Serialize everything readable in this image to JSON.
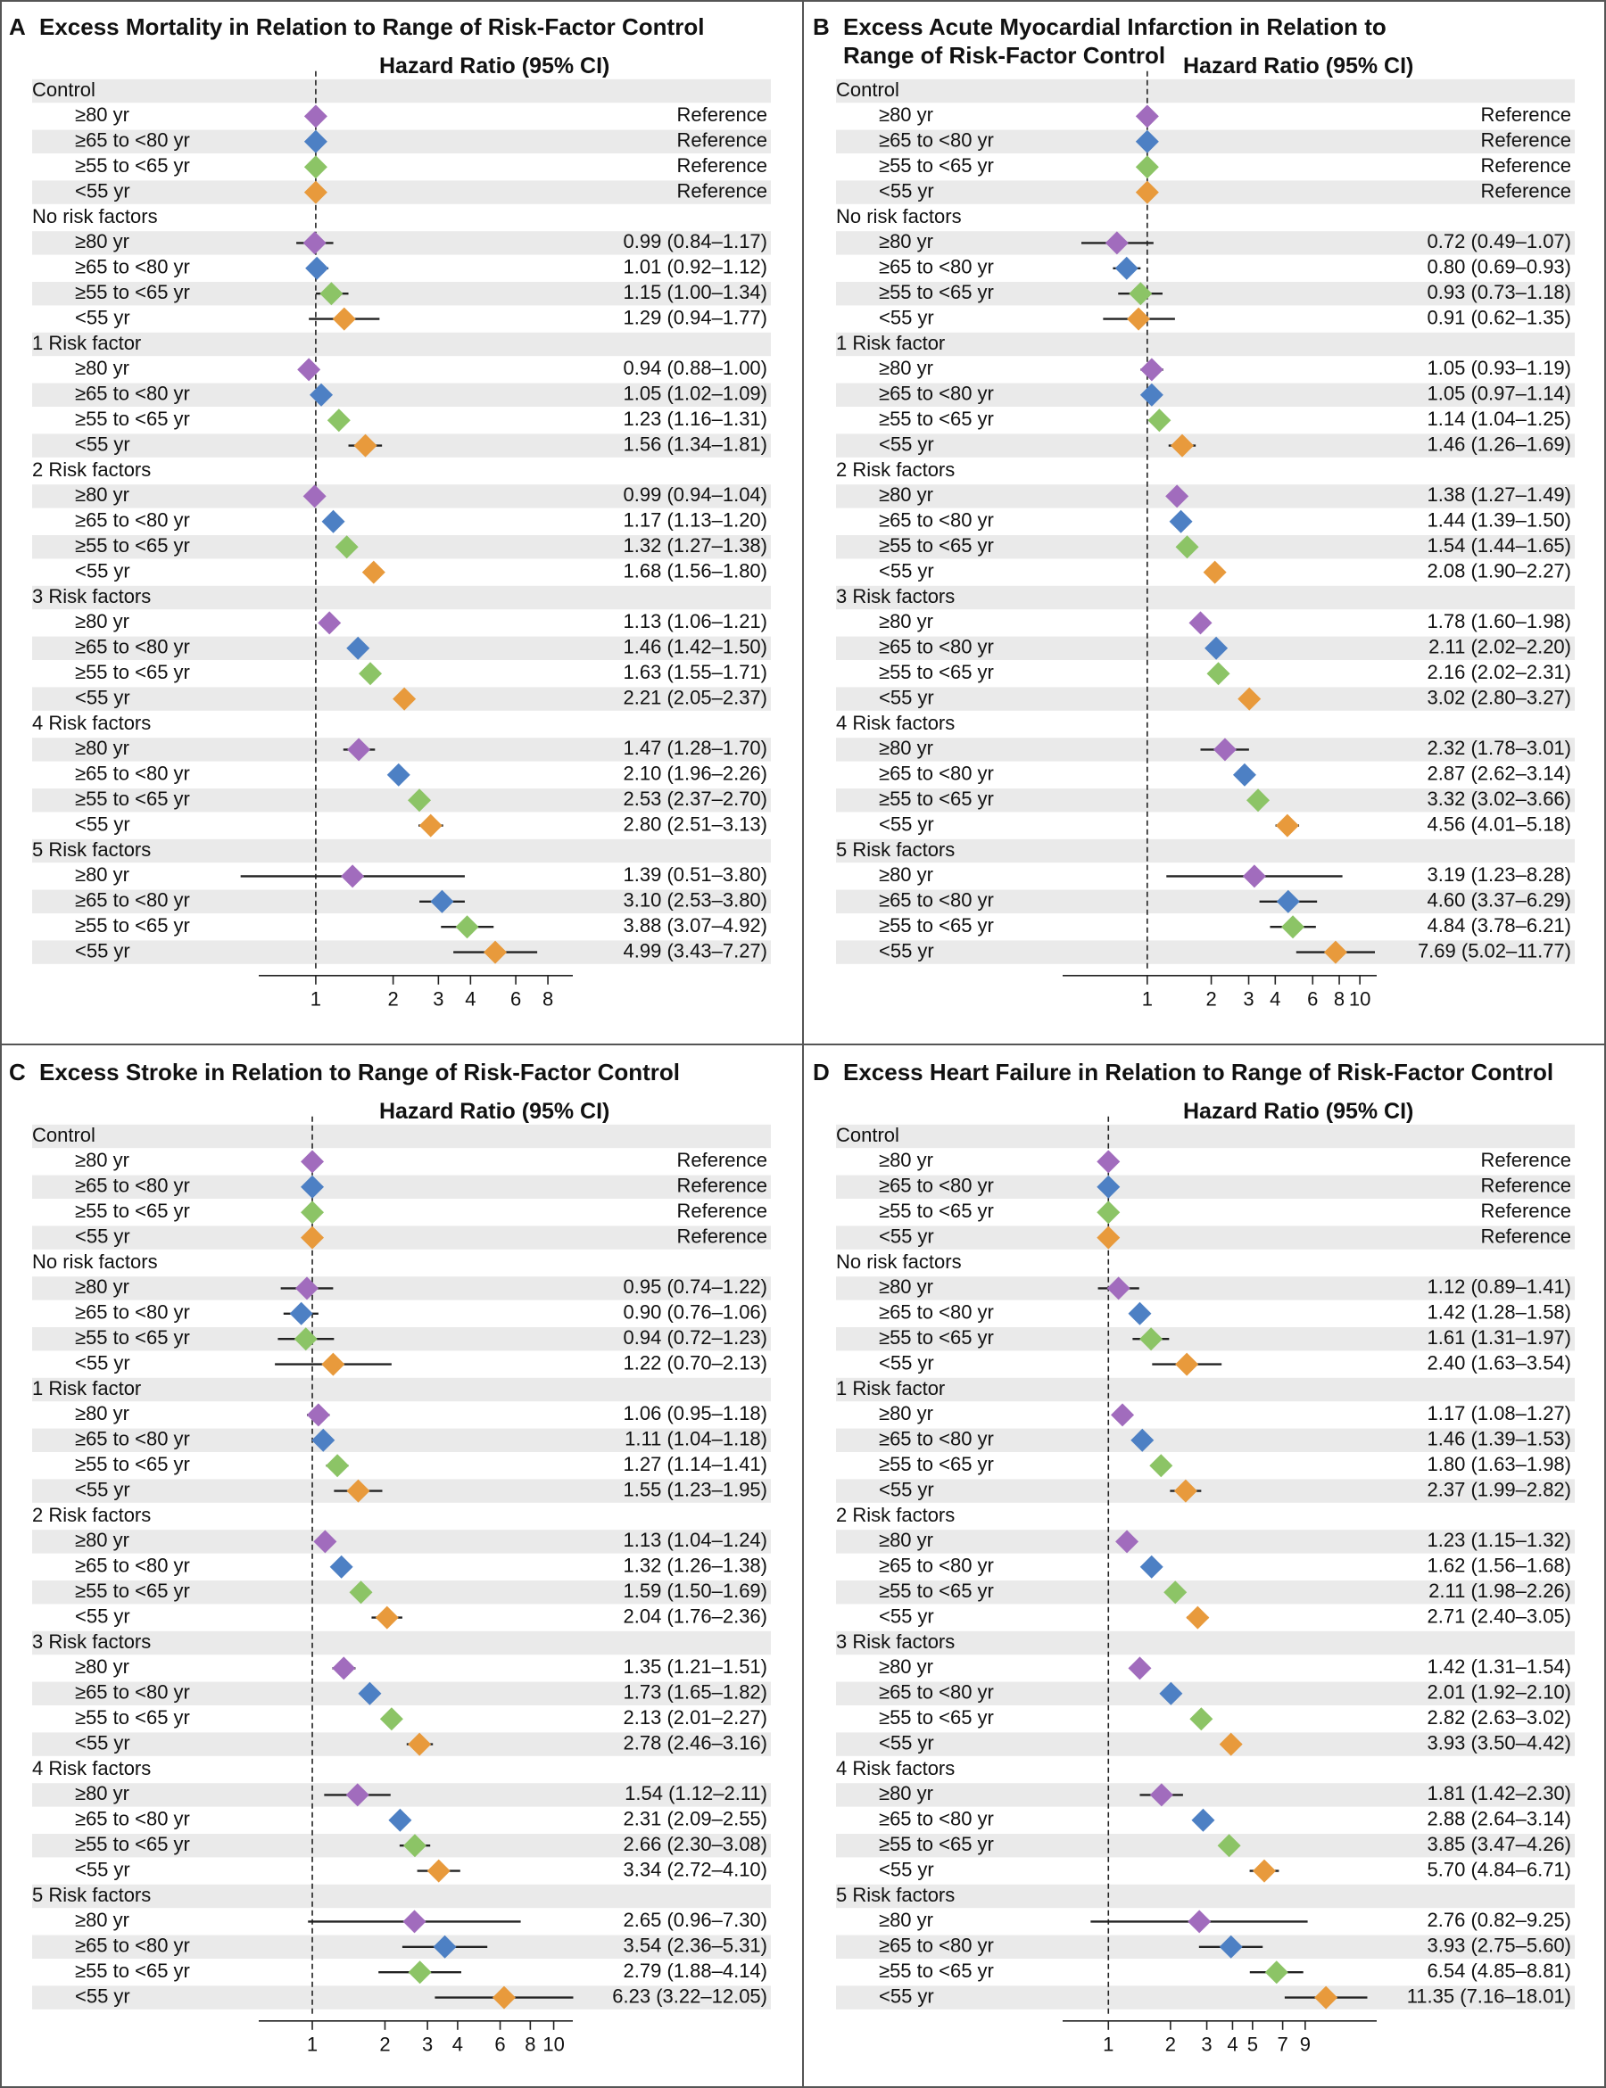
{
  "hr_label": "Hazard Ratio (95% CI)",
  "ref_label": "Reference",
  "age_labels": [
    "≥80 yr",
    "≥65 to <80 yr",
    "≥55 to <65 yr",
    "<55 yr"
  ],
  "group_labels": [
    "Control",
    "No risk factors",
    "1 Risk factor",
    "2 Risk factors",
    "3 Risk factors",
    "4 Risk factors",
    "5 Risk factors"
  ],
  "colors": {
    "purple": "#a16cbd",
    "blue": "#4d80c4",
    "green": "#8cc466",
    "orange": "#e89a3c",
    "stripe": "#eaeaea",
    "line": "#222222"
  },
  "chart_data": [
    {
      "type": "forest",
      "panel": "A",
      "title": "Excess Mortality in Relation to Range of Risk-Factor Control",
      "xscale": "log",
      "xlim": [
        0.6,
        10
      ],
      "ticks": [
        1,
        2,
        3,
        4,
        6,
        8
      ],
      "reference_line": 1,
      "series": [
        {
          "group": "No risk factors",
          "rows": [
            [
              "0.99 (0.84–1.17)",
              0.99,
              0.84,
              1.17
            ],
            [
              "1.01 (0.92–1.12)",
              1.01,
              0.92,
              1.12
            ],
            [
              "1.15 (1.00–1.34)",
              1.15,
              1.0,
              1.34
            ],
            [
              "1.29 (0.94–1.77)",
              1.29,
              0.94,
              1.77
            ]
          ]
        },
        {
          "group": "1 Risk factor",
          "rows": [
            [
              "0.94 (0.88–1.00)",
              0.94,
              0.88,
              1.0
            ],
            [
              "1.05 (1.02–1.09)",
              1.05,
              1.02,
              1.09
            ],
            [
              "1.23 (1.16–1.31)",
              1.23,
              1.16,
              1.31
            ],
            [
              "1.56 (1.34–1.81)",
              1.56,
              1.34,
              1.81
            ]
          ]
        },
        {
          "group": "2 Risk factors",
          "rows": [
            [
              "0.99 (0.94–1.04)",
              0.99,
              0.94,
              1.04
            ],
            [
              "1.17 (1.13–1.20)",
              1.17,
              1.13,
              1.2
            ],
            [
              "1.32 (1.27–1.38)",
              1.32,
              1.27,
              1.38
            ],
            [
              "1.68 (1.56–1.80)",
              1.68,
              1.56,
              1.8
            ]
          ]
        },
        {
          "group": "3 Risk factors",
          "rows": [
            [
              "1.13 (1.06–1.21)",
              1.13,
              1.06,
              1.21
            ],
            [
              "1.46 (1.42–1.50)",
              1.46,
              1.42,
              1.5
            ],
            [
              "1.63 (1.55–1.71)",
              1.63,
              1.55,
              1.71
            ],
            [
              "2.21 (2.05–2.37)",
              2.21,
              2.05,
              2.37
            ]
          ]
        },
        {
          "group": "4 Risk factors",
          "rows": [
            [
              "1.47 (1.28–1.70)",
              1.47,
              1.28,
              1.7
            ],
            [
              "2.10 (1.96–2.26)",
              2.1,
              1.96,
              2.26
            ],
            [
              "2.53 (2.37–2.70)",
              2.53,
              2.37,
              2.7
            ],
            [
              "2.80 (2.51–3.13)",
              2.8,
              2.51,
              3.13
            ]
          ]
        },
        {
          "group": "5 Risk factors",
          "rows": [
            [
              "1.39 (0.51–3.80)",
              1.39,
              0.51,
              3.8
            ],
            [
              "3.10 (2.53–3.80)",
              3.1,
              2.53,
              3.8
            ],
            [
              "3.88 (3.07–4.92)",
              3.88,
              3.07,
              4.92
            ],
            [
              "4.99 (3.43–7.27)",
              4.99,
              3.43,
              7.27
            ]
          ]
        }
      ]
    },
    {
      "type": "forest",
      "panel": "B",
      "title": "Excess Acute Myocardial Infarction in Relation to Range of Risk-Factor Control",
      "xscale": "log",
      "xlim": [
        0.4,
        12
      ],
      "ticks": [
        1,
        2,
        3,
        4,
        6,
        8,
        10
      ],
      "reference_line": 1,
      "series": [
        {
          "group": "No risk factors",
          "rows": [
            [
              "0.72 (0.49–1.07)",
              0.72,
              0.49,
              1.07
            ],
            [
              "0.80 (0.69–0.93)",
              0.8,
              0.69,
              0.93
            ],
            [
              "0.93 (0.73–1.18)",
              0.93,
              0.73,
              1.18
            ],
            [
              "0.91 (0.62–1.35)",
              0.91,
              0.62,
              1.35
            ]
          ]
        },
        {
          "group": "1 Risk factor",
          "rows": [
            [
              "1.05 (0.93–1.19)",
              1.05,
              0.93,
              1.19
            ],
            [
              "1.05 (0.97–1.14)",
              1.05,
              0.97,
              1.14
            ],
            [
              "1.14 (1.04–1.25)",
              1.14,
              1.04,
              1.25
            ],
            [
              "1.46 (1.26–1.69)",
              1.46,
              1.26,
              1.69
            ]
          ]
        },
        {
          "group": "2 Risk factors",
          "rows": [
            [
              "1.38 (1.27–1.49)",
              1.38,
              1.27,
              1.49
            ],
            [
              "1.44 (1.39–1.50)",
              1.44,
              1.39,
              1.5
            ],
            [
              "1.54 (1.44–1.65)",
              1.54,
              1.44,
              1.65
            ],
            [
              "2.08 (1.90–2.27)",
              2.08,
              1.9,
              2.27
            ]
          ]
        },
        {
          "group": "3 Risk factors",
          "rows": [
            [
              "1.78 (1.60–1.98)",
              1.78,
              1.6,
              1.98
            ],
            [
              "2.11 (2.02–2.20)",
              2.11,
              2.02,
              2.2
            ],
            [
              "2.16 (2.02–2.31)",
              2.16,
              2.02,
              2.31
            ],
            [
              "3.02 (2.80–3.27)",
              3.02,
              2.8,
              3.27
            ]
          ]
        },
        {
          "group": "4 Risk factors",
          "rows": [
            [
              "2.32 (1.78–3.01)",
              2.32,
              1.78,
              3.01
            ],
            [
              "2.87 (2.62–3.14)",
              2.87,
              2.62,
              3.14
            ],
            [
              "3.32 (3.02–3.66)",
              3.32,
              3.02,
              3.66
            ],
            [
              "4.56 (4.01–5.18)",
              4.56,
              4.01,
              5.18
            ]
          ]
        },
        {
          "group": "5 Risk factors",
          "rows": [
            [
              "3.19 (1.23–8.28)",
              3.19,
              1.23,
              8.28
            ],
            [
              "4.60 (3.37–6.29)",
              4.6,
              3.37,
              6.29
            ],
            [
              "4.84 (3.78–6.21)",
              4.84,
              3.78,
              6.21
            ],
            [
              "7.69 (5.02–11.77)",
              7.69,
              5.02,
              11.77
            ]
          ]
        }
      ]
    },
    {
      "type": "forest",
      "panel": "C",
      "title": "Excess Stroke in Relation to Range of Risk-Factor Control",
      "xscale": "log",
      "xlim": [
        0.6,
        12
      ],
      "ticks": [
        1,
        2,
        3,
        4,
        6,
        8,
        10
      ],
      "reference_line": 1,
      "series": [
        {
          "group": "No risk factors",
          "rows": [
            [
              "0.95 (0.74–1.22)",
              0.95,
              0.74,
              1.22
            ],
            [
              "0.90 (0.76–1.06)",
              0.9,
              0.76,
              1.06
            ],
            [
              "0.94 (0.72–1.23)",
              0.94,
              0.72,
              1.23
            ],
            [
              "1.22 (0.70–2.13)",
              1.22,
              0.7,
              2.13
            ]
          ]
        },
        {
          "group": "1 Risk factor",
          "rows": [
            [
              "1.06 (0.95–1.18)",
              1.06,
              0.95,
              1.18
            ],
            [
              "1.11 (1.04–1.18)",
              1.11,
              1.04,
              1.18
            ],
            [
              "1.27 (1.14–1.41)",
              1.27,
              1.14,
              1.41
            ],
            [
              "1.55 (1.23–1.95)",
              1.55,
              1.23,
              1.95
            ]
          ]
        },
        {
          "group": "2 Risk factors",
          "rows": [
            [
              "1.13 (1.04–1.24)",
              1.13,
              1.04,
              1.24
            ],
            [
              "1.32 (1.26–1.38)",
              1.32,
              1.26,
              1.38
            ],
            [
              "1.59 (1.50–1.69)",
              1.59,
              1.5,
              1.69
            ],
            [
              "2.04 (1.76–2.36)",
              2.04,
              1.76,
              2.36
            ]
          ]
        },
        {
          "group": "3 Risk factors",
          "rows": [
            [
              "1.35 (1.21–1.51)",
              1.35,
              1.21,
              1.51
            ],
            [
              "1.73 (1.65–1.82)",
              1.73,
              1.65,
              1.82
            ],
            [
              "2.13 (2.01–2.27)",
              2.13,
              2.01,
              2.27
            ],
            [
              "2.78 (2.46–3.16)",
              2.78,
              2.46,
              3.16
            ]
          ]
        },
        {
          "group": "4 Risk factors",
          "rows": [
            [
              "1.54 (1.12–2.11)",
              1.54,
              1.12,
              2.11
            ],
            [
              "2.31 (2.09–2.55)",
              2.31,
              2.09,
              2.55
            ],
            [
              "2.66 (2.30–3.08)",
              2.66,
              2.3,
              3.08
            ],
            [
              "3.34 (2.72–4.10)",
              3.34,
              2.72,
              4.1
            ]
          ]
        },
        {
          "group": "5 Risk factors",
          "rows": [
            [
              "2.65 (0.96–7.30)",
              2.65,
              0.96,
              7.3
            ],
            [
              "3.54 (2.36–5.31)",
              3.54,
              2.36,
              5.31
            ],
            [
              "2.79 (1.88–4.14)",
              2.79,
              1.88,
              4.14
            ],
            [
              "6.23 (3.22–12.05)",
              6.23,
              3.22,
              12.05
            ]
          ]
        }
      ]
    },
    {
      "type": "forest",
      "panel": "D",
      "title": "Excess Heart Failure in Relation to Range of Risk-Factor Control",
      "xscale": "log",
      "xlim": [
        0.6,
        20
      ],
      "ticks": [
        1,
        2,
        3,
        4,
        5,
        7,
        9
      ],
      "reference_line": 1,
      "series": [
        {
          "group": "No risk factors",
          "rows": [
            [
              "1.12 (0.89–1.41)",
              1.12,
              0.89,
              1.41
            ],
            [
              "1.42 (1.28–1.58)",
              1.42,
              1.28,
              1.58
            ],
            [
              "1.61 (1.31–1.97)",
              1.61,
              1.31,
              1.97
            ],
            [
              "2.40 (1.63–3.54)",
              2.4,
              1.63,
              3.54
            ]
          ]
        },
        {
          "group": "1 Risk factor",
          "rows": [
            [
              "1.17 (1.08–1.27)",
              1.17,
              1.08,
              1.27
            ],
            [
              "1.46 (1.39–1.53)",
              1.46,
              1.39,
              1.53
            ],
            [
              "1.80 (1.63–1.98)",
              1.8,
              1.63,
              1.98
            ],
            [
              "2.37 (1.99–2.82)",
              2.37,
              1.99,
              2.82
            ]
          ]
        },
        {
          "group": "2 Risk factors",
          "rows": [
            [
              "1.23 (1.15–1.32)",
              1.23,
              1.15,
              1.32
            ],
            [
              "1.62 (1.56–1.68)",
              1.62,
              1.56,
              1.68
            ],
            [
              "2.11 (1.98–2.26)",
              2.11,
              1.98,
              2.26
            ],
            [
              "2.71 (2.40–3.05)",
              2.71,
              2.4,
              3.05
            ]
          ]
        },
        {
          "group": "3 Risk factors",
          "rows": [
            [
              "1.42 (1.31–1.54)",
              1.42,
              1.31,
              1.54
            ],
            [
              "2.01 (1.92–2.10)",
              2.01,
              1.92,
              2.1
            ],
            [
              "2.82 (2.63–3.02)",
              2.82,
              2.63,
              3.02
            ],
            [
              "3.93 (3.50–4.42)",
              3.93,
              3.5,
              4.42
            ]
          ]
        },
        {
          "group": "4 Risk factors",
          "rows": [
            [
              "1.81 (1.42–2.30)",
              1.81,
              1.42,
              2.3
            ],
            [
              "2.88 (2.64–3.14)",
              2.88,
              2.64,
              3.14
            ],
            [
              "3.85 (3.47–4.26)",
              3.85,
              3.47,
              4.26
            ],
            [
              "5.70 (4.84–6.71)",
              5.7,
              4.84,
              6.71
            ]
          ]
        },
        {
          "group": "5 Risk factors",
          "rows": [
            [
              "2.76 (0.82–9.25)",
              2.76,
              0.82,
              9.25
            ],
            [
              "3.93 (2.75–5.60)",
              3.93,
              2.75,
              5.6
            ],
            [
              "6.54 (4.85–8.81)",
              6.54,
              4.85,
              8.81
            ],
            [
              "11.35 (7.16–18.01)",
              11.35,
              7.16,
              18.01
            ]
          ]
        }
      ]
    }
  ]
}
